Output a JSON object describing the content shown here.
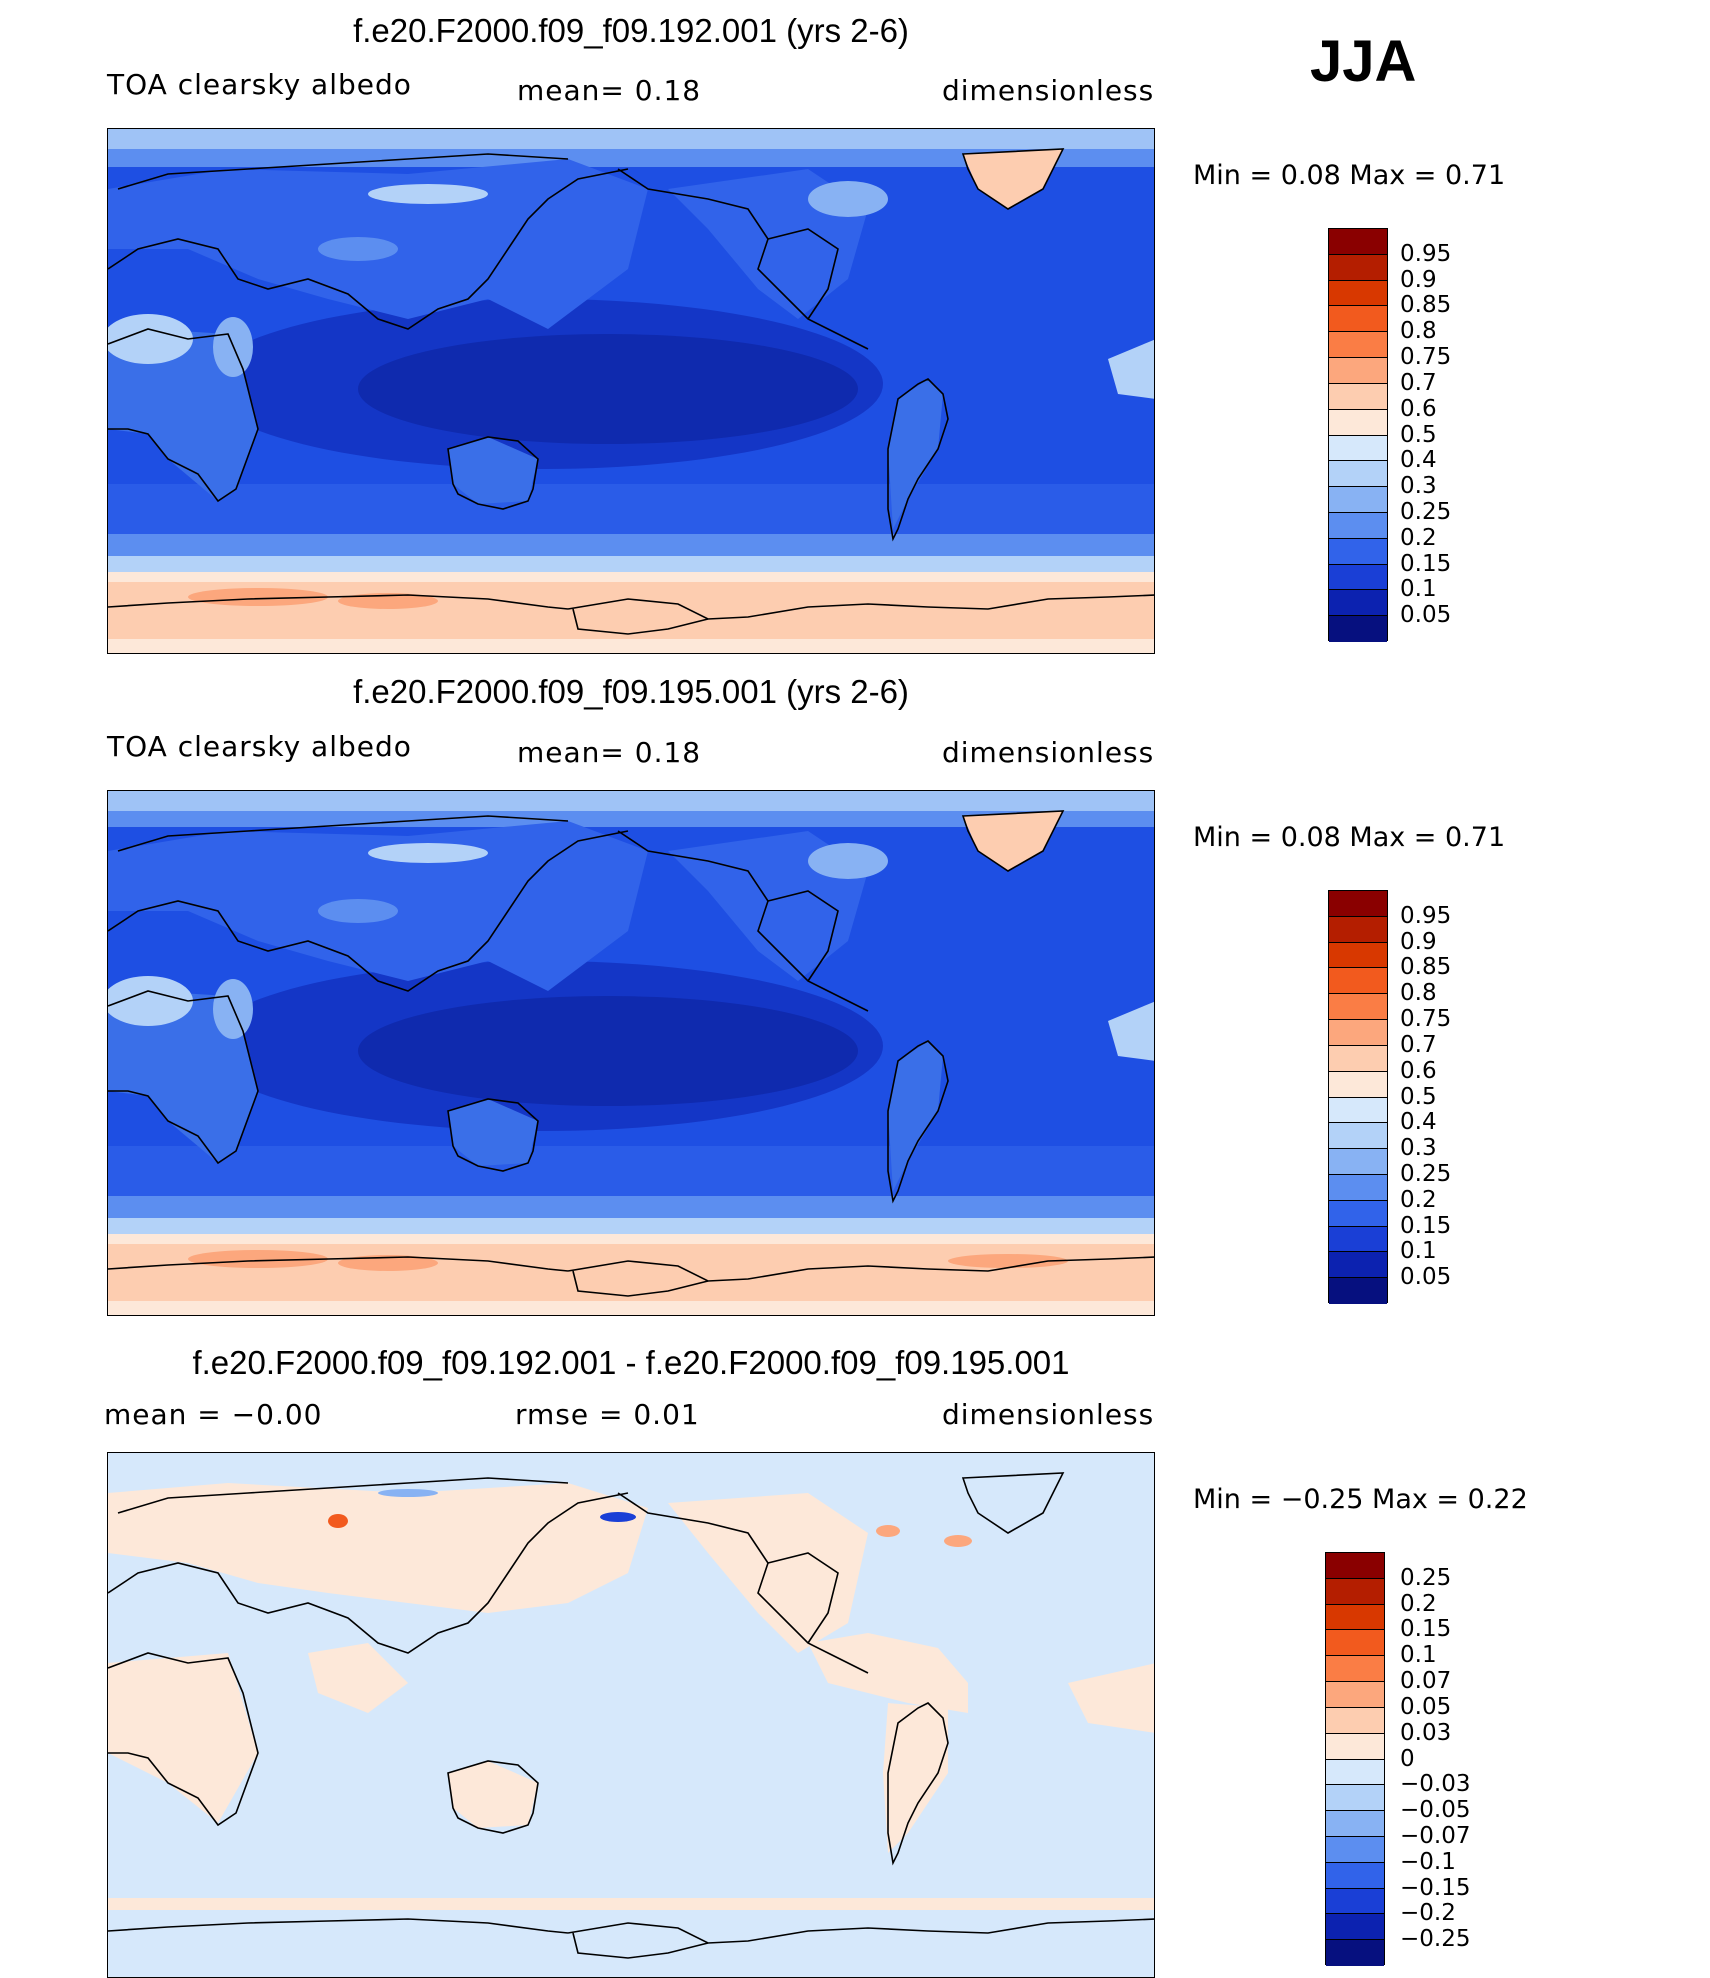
{
  "season": "JJA",
  "panels": [
    {
      "title": "f.e20.F2000.f09_f09.192.001 (yrs 2-6)",
      "left_label": "TOA clearsky albedo",
      "center_label": "mean=    0.18",
      "units": "dimensionless",
      "min_max": "Min  =     0.08  Max  =     0.71",
      "colorbar_labels": [
        "0.95",
        "0.9",
        "0.85",
        "0.8",
        "0.75",
        "0.7",
        "0.6",
        "0.5",
        "0.4",
        "0.3",
        "0.25",
        "0.2",
        "0.15",
        "0.1",
        "0.05"
      ],
      "colorbar_colors": [
        "#8a0000",
        "#b41e00",
        "#d83800",
        "#f25a1e",
        "#fa7d45",
        "#fca77d",
        "#fdcdb0",
        "#fde8d9",
        "#d6e8fb",
        "#b3d2f8",
        "#88b2f3",
        "#5c8ef0",
        "#3163ea",
        "#1a3fd6",
        "#0c22b0",
        "#06107f"
      ]
    },
    {
      "title": "f.e20.F2000.f09_f09.195.001 (yrs 2-6)",
      "left_label": "TOA clearsky albedo",
      "center_label": "mean=    0.18",
      "units": "dimensionless",
      "min_max": "Min  =     0.08  Max  =     0.71",
      "colorbar_labels": [
        "0.95",
        "0.9",
        "0.85",
        "0.8",
        "0.75",
        "0.7",
        "0.6",
        "0.5",
        "0.4",
        "0.3",
        "0.25",
        "0.2",
        "0.15",
        "0.1",
        "0.05"
      ],
      "colorbar_colors": [
        "#8a0000",
        "#b41e00",
        "#d83800",
        "#f25a1e",
        "#fa7d45",
        "#fca77d",
        "#fdcdb0",
        "#fde8d9",
        "#d6e8fb",
        "#b3d2f8",
        "#88b2f3",
        "#5c8ef0",
        "#3163ea",
        "#1a3fd6",
        "#0c22b0",
        "#06107f"
      ]
    },
    {
      "title": "f.e20.F2000.f09_f09.192.001 - f.e20.F2000.f09_f09.195.001",
      "left_label": "mean  =   −0.00",
      "center_label": "rmse  =    0.01",
      "units": "dimensionless",
      "min_max": "Min  =   −0.25  Max  =     0.22",
      "colorbar_labels": [
        "0.25",
        "0.2",
        "0.15",
        "0.1",
        "0.07",
        "0.05",
        "0.03",
        "0",
        "−0.03",
        "−0.05",
        "−0.07",
        "−0.1",
        "−0.15",
        "−0.2",
        "−0.25"
      ],
      "colorbar_colors": [
        "#8a0000",
        "#b41e00",
        "#d83800",
        "#f25a1e",
        "#fa7d45",
        "#fca77d",
        "#fdcdb0",
        "#fde8d9",
        "#d6e8fb",
        "#b3d2f8",
        "#88b2f3",
        "#5c8ef0",
        "#3163ea",
        "#1a3fd6",
        "#0c22b0",
        "#06107f"
      ]
    }
  ]
}
